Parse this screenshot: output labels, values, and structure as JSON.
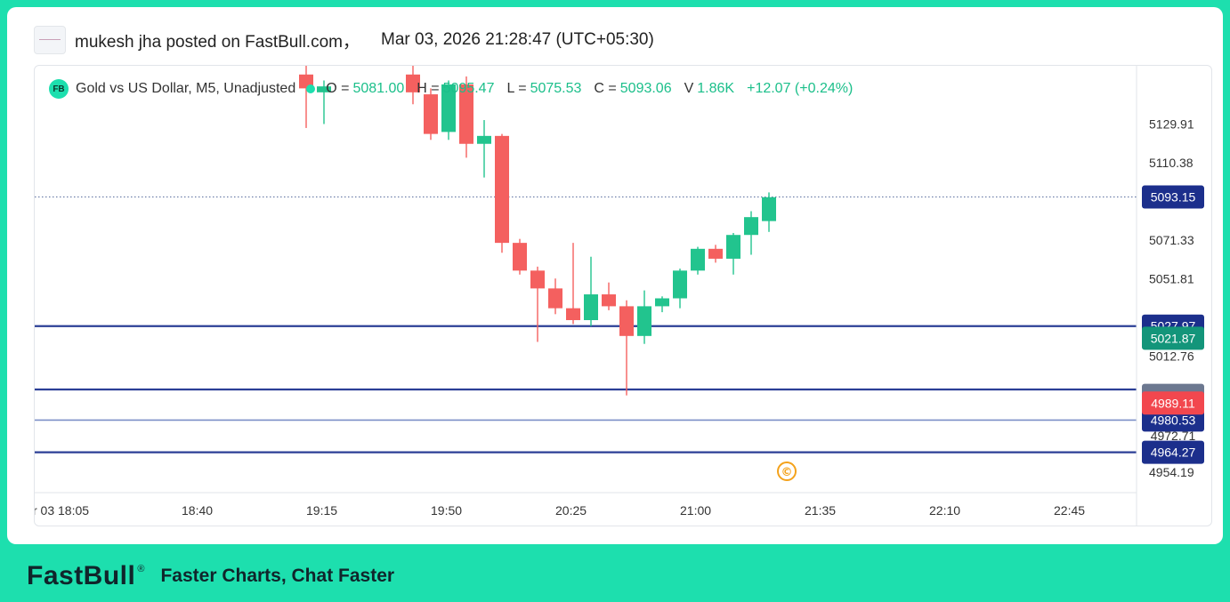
{
  "post": {
    "author_line": "mukesh jha posted on FastBull.com，",
    "timestamp": "Mar 03, 2026 21:28:47 (UTC+05:30)"
  },
  "legend": {
    "logo": "FB",
    "symbol": "Gold vs US Dollar, M5, Unadjusted",
    "o_label": "O =",
    "o_value": "5081.00",
    "h_label": "H =",
    "h_value": "5095.47",
    "l_label": "L =",
    "l_value": "5075.53",
    "c_label": "C =",
    "c_value": "5093.06",
    "v_label": "V",
    "v_value": "1.86K",
    "change": "+12.07 (+0.24%)"
  },
  "footer": {
    "brand": "FastBull",
    "reg": "®",
    "tagline": "Faster Charts, Chat Faster"
  },
  "colors": {
    "up": "#22c48e",
    "down": "#f4605f",
    "level_line": "#2b3f96",
    "level_line_light": "#7c8fc7",
    "price_tag_blue": "#1c2f8c",
    "price_tag_green": "#13957a",
    "price_tag_red": "#f2474e",
    "watermark": "#f4a21b"
  },
  "chart_data": {
    "type": "candlestick",
    "symbol": "Gold vs US Dollar",
    "timeframe": "M5",
    "x_tick_labels": [
      "r 03 18:05",
      "18:40",
      "19:15",
      "19:50",
      "20:25",
      "21:00",
      "21:35",
      "22:10",
      "22:45"
    ],
    "y_tick_labels": [
      "5129.91",
      "5110.38",
      "5071.33",
      "5051.81",
      "5012.76",
      "4954.19"
    ],
    "y_ticks": [
      5129.91,
      5110.38,
      5071.33,
      5051.81,
      5012.76,
      4954.19
    ],
    "ylim": [
      4940,
      5150
    ],
    "candles": [
      {
        "time": "19:15",
        "o": 5155,
        "h": 5162,
        "l": 5128,
        "c": 5148
      },
      {
        "time": "19:20",
        "o": 5146,
        "h": 5152,
        "l": 5130,
        "c": 5149
      },
      {
        "time": "19:45",
        "o": 5155,
        "h": 5165,
        "l": 5140,
        "c": 5146
      },
      {
        "time": "19:50",
        "o": 5145,
        "h": 5148,
        "l": 5122,
        "c": 5125
      },
      {
        "time": "19:55",
        "o": 5126,
        "h": 5152,
        "l": 5122,
        "c": 5150
      },
      {
        "time": "20:00",
        "o": 5150,
        "h": 5154,
        "l": 5113,
        "c": 5120
      },
      {
        "time": "20:05",
        "o": 5120,
        "h": 5132,
        "l": 5103,
        "c": 5124
      },
      {
        "time": "20:10",
        "o": 5124,
        "h": 5125,
        "l": 5065,
        "c": 5070
      },
      {
        "time": "20:15",
        "o": 5070,
        "h": 5072,
        "l": 5054,
        "c": 5056
      },
      {
        "time": "20:20",
        "o": 5056,
        "h": 5058,
        "l": 5020,
        "c": 5047
      },
      {
        "time": "20:25",
        "o": 5047,
        "h": 5052,
        "l": 5034,
        "c": 5037
      },
      {
        "time": "20:30",
        "o": 5037,
        "h": 5070,
        "l": 5029,
        "c": 5031
      },
      {
        "time": "20:35",
        "o": 5031,
        "h": 5063,
        "l": 5028,
        "c": 5044
      },
      {
        "time": "20:40",
        "o": 5044,
        "h": 5050,
        "l": 5036,
        "c": 5038
      },
      {
        "time": "20:45",
        "o": 5038,
        "h": 5041,
        "l": 4993,
        "c": 5023
      },
      {
        "time": "20:50",
        "o": 5023,
        "h": 5046,
        "l": 5019,
        "c": 5038
      },
      {
        "time": "20:55",
        "o": 5038,
        "h": 5043,
        "l": 5035,
        "c": 5042
      },
      {
        "time": "21:00",
        "o": 5042,
        "h": 5057,
        "l": 5037,
        "c": 5056
      },
      {
        "time": "21:05",
        "o": 5056,
        "h": 5068,
        "l": 5054,
        "c": 5067
      },
      {
        "time": "21:10",
        "o": 5067,
        "h": 5069,
        "l": 5060,
        "c": 5062
      },
      {
        "time": "21:15",
        "o": 5062,
        "h": 5075,
        "l": 5054,
        "c": 5074
      },
      {
        "time": "21:20",
        "o": 5074,
        "h": 5086,
        "l": 5064,
        "c": 5083
      },
      {
        "time": "21:25",
        "o": 5081.0,
        "h": 5095.47,
        "l": 5075.53,
        "c": 5093.06
      }
    ],
    "current_price_line": 5093.15,
    "levels": [
      {
        "price": 5027.97,
        "label": "5027.97"
      },
      {
        "price": 4996.0,
        "label": ""
      },
      {
        "price": 4980.53,
        "label": "4980.53"
      },
      {
        "price": 4964.27,
        "label": "4964.27"
      }
    ],
    "price_tags": [
      {
        "price": 5093.15,
        "label": "5093.15",
        "style": "blue"
      },
      {
        "price": 5027.97,
        "label": "5027.97",
        "style": "blue"
      },
      {
        "price": 5021.87,
        "label": "5021.87",
        "style": "green"
      },
      {
        "price": 4993.0,
        "label": "",
        "style": "gray"
      },
      {
        "price": 4989.11,
        "label": "4989.11",
        "style": "red"
      },
      {
        "price": 4980.53,
        "label": "4980.53",
        "style": "blue"
      },
      {
        "price": 4972.71,
        "label": "4972.71",
        "style": "plain"
      },
      {
        "price": 4964.27,
        "label": "4964.27",
        "style": "blue"
      }
    ],
    "watermark": "©",
    "grid": false
  }
}
